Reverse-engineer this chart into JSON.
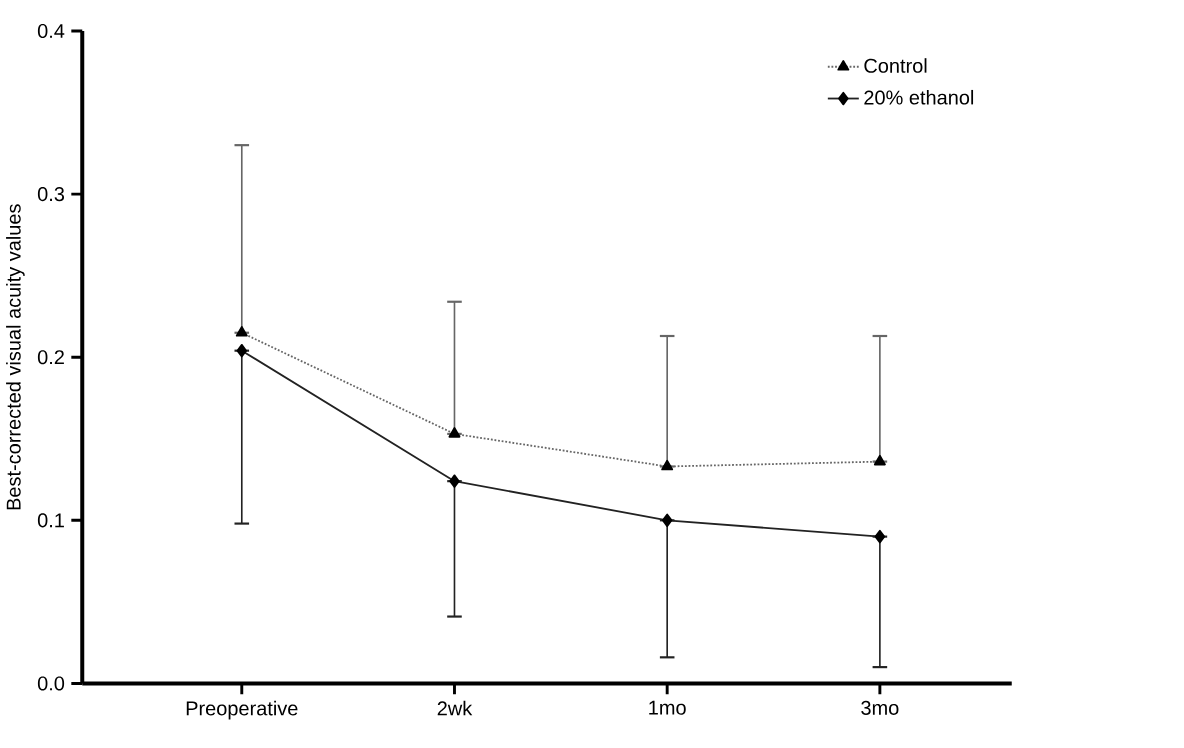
{
  "chart_data": {
    "type": "line",
    "ylabel": "Best-corrected visual acuity values",
    "categories": [
      "Preoperative",
      "2wk",
      "1mo",
      "3mo"
    ],
    "ylim": [
      0,
      0.4
    ],
    "yticks": [
      {
        "value": 0,
        "label": "0.0"
      },
      0.1,
      0.2,
      0.3,
      0.4
    ],
    "legend": "top right",
    "grid": false,
    "series": [
      {
        "name": "Control",
        "color": "#666666",
        "marker": "triangle",
        "line_style": "dotted",
        "values": [
          0.215,
          0.153,
          0.133,
          0.136
        ],
        "errors": [
          [
            0.215,
            0.33
          ],
          [
            0.153,
            0.234
          ],
          [
            0.133,
            0.213
          ],
          [
            0.136,
            0.213
          ]
        ]
      },
      {
        "name": "20% ethanol",
        "color": "#222222",
        "marker": "diamond",
        "line_style": "solid",
        "values": [
          0.204,
          0.124,
          0.1,
          0.09
        ],
        "errors": [
          [
            0.098,
            0.204
          ],
          [
            0.041,
            0.124
          ],
          [
            0.016,
            0.1
          ],
          [
            0.01,
            0.09
          ]
        ]
      }
    ]
  }
}
